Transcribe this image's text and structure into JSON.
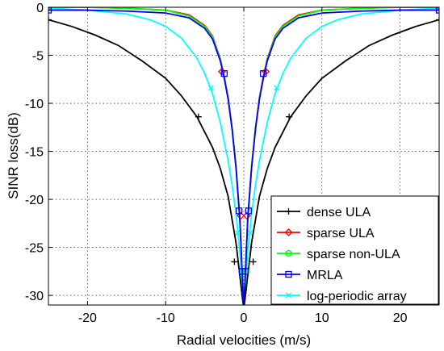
{
  "chart_data": {
    "type": "line",
    "title": "",
    "xlabel": "Radial velocities (m/s)",
    "ylabel": "SINR loss(dB)",
    "xlim": [
      -25,
      25
    ],
    "ylim": [
      -31,
      0
    ],
    "xticks": [
      -20,
      -10,
      0,
      10,
      20
    ],
    "yticks": [
      0,
      -5,
      -10,
      -15,
      -20,
      -25,
      -30
    ],
    "grid": true,
    "legend_position": "bottom-right",
    "series": [
      {
        "name": "dense ULA",
        "color": "#000000",
        "marker": "plus",
        "x": [
          -25,
          -22,
          -19,
          -16,
          -13,
          -10,
          -8,
          -6,
          -4,
          -3,
          -2,
          -1,
          -0.5,
          0,
          0.5,
          1,
          2,
          3,
          4,
          6,
          8,
          10,
          13,
          16,
          19,
          22,
          25
        ],
        "y": [
          -1.3,
          -2.0,
          -2.9,
          -4.0,
          -5.6,
          -7.4,
          -9.2,
          -11.4,
          -14.6,
          -16.8,
          -19.7,
          -24.5,
          -28.0,
          -31.5,
          -28.0,
          -24.5,
          -19.7,
          -16.8,
          -14.6,
          -11.4,
          -9.2,
          -7.4,
          -5.6,
          -4.0,
          -2.9,
          -2.0,
          -1.3
        ],
        "marker_x": [
          -25,
          -5.8,
          -1.2,
          1.2,
          5.8,
          25
        ],
        "marker_y": [
          -1.3,
          -11.4,
          -26.5,
          -26.5,
          -11.4,
          -1.3
        ]
      },
      {
        "name": "sparse ULA",
        "color": "#ff0000",
        "marker": "diamond",
        "x": [
          -25,
          -20,
          -15,
          -10,
          -7,
          -5,
          -4,
          -3,
          -2.5,
          -2,
          -1.5,
          -1,
          -0.5,
          0,
          0.5,
          1,
          1.5,
          2,
          2.5,
          3,
          4,
          5,
          7,
          10,
          15,
          20,
          25
        ],
        "y": [
          0,
          0,
          -0.1,
          -0.3,
          -0.8,
          -1.9,
          -3.0,
          -5.4,
          -7.2,
          -9.4,
          -12.5,
          -16.5,
          -22.0,
          -31.5,
          -22.0,
          -16.5,
          -12.5,
          -9.4,
          -7.2,
          -5.4,
          -3.0,
          -1.9,
          -0.8,
          -0.3,
          -0.1,
          0,
          0
        ],
        "marker_x": [
          -25,
          -2.8,
          -0.4,
          0.4,
          2.8,
          25
        ],
        "marker_y": [
          0,
          -6.7,
          -21.7,
          -21.7,
          -6.7,
          0
        ]
      },
      {
        "name": "sparse non-ULA",
        "color": "#00ff00",
        "marker": "circle",
        "x": [
          -25,
          -20,
          -15,
          -10,
          -7,
          -5,
          -4,
          -3,
          -2.5,
          -2,
          -1.5,
          -1,
          -0.5,
          0,
          0.5,
          1,
          1.5,
          2,
          2.5,
          3,
          4,
          5,
          7,
          10,
          15,
          20,
          25
        ],
        "y": [
          0,
          0,
          -0.1,
          -0.3,
          -0.9,
          -2.0,
          -3.1,
          -5.5,
          -7.3,
          -9.5,
          -12.6,
          -16.6,
          -22.1,
          -31.5,
          -22.1,
          -16.6,
          -12.6,
          -9.5,
          -7.3,
          -5.5,
          -3.1,
          -2.0,
          -0.9,
          -0.3,
          -0.1,
          0,
          0
        ],
        "marker_x": [
          -25,
          -0.3,
          0.3,
          25
        ],
        "marker_y": [
          0,
          -27.5,
          -27.5,
          0
        ]
      },
      {
        "name": "MRLA",
        "color": "#0000ff",
        "marker": "square",
        "x": [
          -25,
          -20,
          -15,
          -10,
          -7,
          -5,
          -4,
          -3,
          -2.5,
          -2,
          -1.5,
          -1,
          -0.5,
          0,
          0.5,
          1,
          1.5,
          2,
          2.5,
          3,
          4,
          5,
          7,
          10,
          15,
          20,
          25
        ],
        "y": [
          -0.3,
          -0.3,
          -0.4,
          -0.6,
          -1.1,
          -2.2,
          -3.3,
          -5.6,
          -7.4,
          -9.6,
          -12.7,
          -16.7,
          -22.2,
          -31.5,
          -22.2,
          -16.7,
          -12.7,
          -9.6,
          -7.4,
          -5.6,
          -3.3,
          -2.2,
          -1.1,
          -0.6,
          -0.4,
          -0.3,
          -0.3
        ],
        "marker_x": [
          -25,
          -2.5,
          -0.6,
          -0.2,
          0.2,
          0.6,
          2.5,
          25
        ],
        "marker_y": [
          -0.3,
          -6.9,
          -21.2,
          -27.5,
          -27.5,
          -21.2,
          -6.9,
          -0.3
        ]
      },
      {
        "name": "log-periodic array",
        "color": "#00ffff",
        "marker": "x",
        "x": [
          -25,
          -20,
          -15,
          -12,
          -10,
          -8,
          -6,
          -5,
          -4,
          -3,
          -2,
          -1.5,
          -1,
          -0.5,
          0,
          0.5,
          1,
          1.5,
          2,
          3,
          4,
          5,
          6,
          8,
          10,
          12,
          15,
          20,
          25
        ],
        "y": [
          -0.1,
          -0.3,
          -0.7,
          -1.3,
          -2.0,
          -3.2,
          -5.3,
          -6.9,
          -9.0,
          -12.0,
          -16.0,
          -18.5,
          -21.5,
          -25.5,
          -31.5,
          -25.5,
          -21.5,
          -18.5,
          -16.0,
          -12.0,
          -9.0,
          -6.9,
          -5.3,
          -3.2,
          -2.0,
          -1.3,
          -0.7,
          -0.3,
          -0.1
        ],
        "marker_x": [
          -25,
          -4.2,
          -0.8,
          0.8,
          4.2,
          25
        ],
        "marker_y": [
          -0.1,
          -8.4,
          -23.5,
          -23.5,
          -8.4,
          -0.1
        ]
      }
    ]
  }
}
